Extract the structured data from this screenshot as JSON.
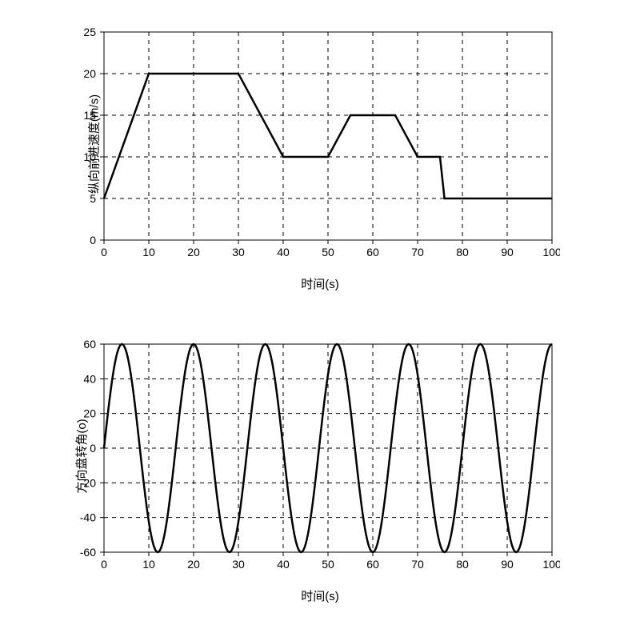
{
  "chart1": {
    "type": "line",
    "xlabel": "时间(s)",
    "ylabel": "纵向前进速度(m/s)",
    "xlim": [
      0,
      100
    ],
    "ylim": [
      0,
      25
    ],
    "xtick_step": 10,
    "ytick_step": 5,
    "xticks": [
      0,
      10,
      20,
      30,
      40,
      50,
      60,
      70,
      80,
      90,
      100
    ],
    "yticks": [
      0,
      5,
      10,
      15,
      20,
      25
    ],
    "background_color": "#ffffff",
    "grid_color": "#000000",
    "line_color": "#000000",
    "line_width": 2.5,
    "grid_dash": "5,5",
    "label_fontsize": 15,
    "tick_fontsize": 14,
    "data_x": [
      0,
      10,
      30,
      40,
      50,
      55,
      65,
      70,
      75,
      76,
      100
    ],
    "data_y": [
      5,
      20,
      20,
      10,
      10,
      15,
      15,
      10,
      10,
      5,
      5
    ]
  },
  "chart2": {
    "type": "line",
    "xlabel": "时间(s)",
    "ylabel": "方向盘转角(o)",
    "xlim": [
      0,
      100
    ],
    "ylim": [
      -60,
      60
    ],
    "xtick_step": 10,
    "ytick_step": 20,
    "xticks": [
      0,
      10,
      20,
      30,
      40,
      50,
      60,
      70,
      80,
      90,
      100
    ],
    "yticks": [
      -60,
      -40,
      -20,
      0,
      20,
      40,
      60
    ],
    "background_color": "#ffffff",
    "grid_color": "#000000",
    "line_color": "#000000",
    "line_width": 2.5,
    "grid_dash": "5,5",
    "label_fontsize": 15,
    "tick_fontsize": 14,
    "sine_amplitude": 60,
    "sine_cycles": 6.25,
    "sine_range": 100,
    "sine_samples": 400
  }
}
